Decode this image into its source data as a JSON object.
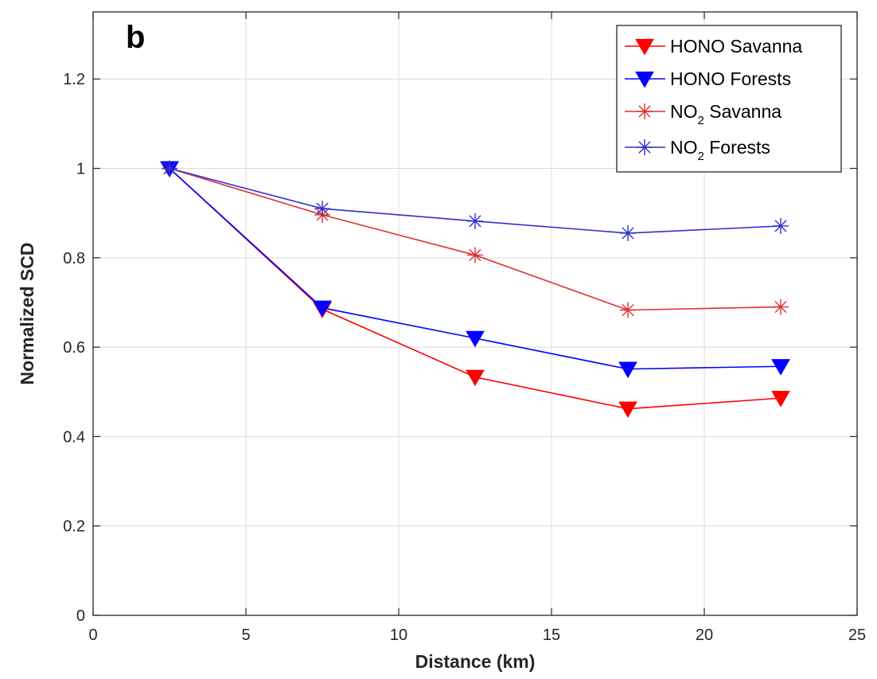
{
  "chart_data": {
    "type": "line",
    "panel_label": "b",
    "xlabel": "Distance (km)",
    "ylabel": "Normalized SCD",
    "xlim": [
      0,
      25
    ],
    "ylim": [
      0,
      1.35
    ],
    "xticks": [
      0,
      5,
      10,
      15,
      20,
      25
    ],
    "yticks": [
      0,
      0.2,
      0.4,
      0.6,
      0.8,
      1,
      1.2
    ],
    "xtick_labels": [
      "0",
      "5",
      "10",
      "15",
      "20",
      "25"
    ],
    "ytick_labels": [
      "0",
      "0.2",
      "0.4",
      "0.6",
      "0.8",
      "1",
      "1.2"
    ],
    "grid": true,
    "legend_position": "top-right",
    "x": [
      2.5,
      7.5,
      12.5,
      17.5,
      22.5
    ],
    "series": [
      {
        "name": "HONO Savanna",
        "name_main": "HONO Savanna",
        "name_sub": "",
        "name_rest": "",
        "marker": "triangle-down",
        "color": "#ff0000",
        "values": [
          1.0,
          0.685,
          0.533,
          0.462,
          0.486
        ]
      },
      {
        "name": "HONO Forests",
        "name_main": "HONO Forests",
        "name_sub": "",
        "name_rest": "",
        "marker": "triangle-down",
        "color": "#0000ff",
        "values": [
          1.0,
          0.688,
          0.62,
          0.551,
          0.557
        ]
      },
      {
        "name": "NO2 Savanna",
        "name_main": "NO",
        "name_sub": "2",
        "name_rest": " Savanna",
        "marker": "asterisk",
        "color": "#e03030",
        "values": [
          1.0,
          0.896,
          0.806,
          0.683,
          0.69
        ]
      },
      {
        "name": "NO2 Forests",
        "name_main": "NO",
        "name_sub": "2",
        "name_rest": " Forests",
        "marker": "asterisk",
        "color": "#3030d0",
        "values": [
          1.0,
          0.91,
          0.882,
          0.855,
          0.871
        ]
      }
    ]
  }
}
